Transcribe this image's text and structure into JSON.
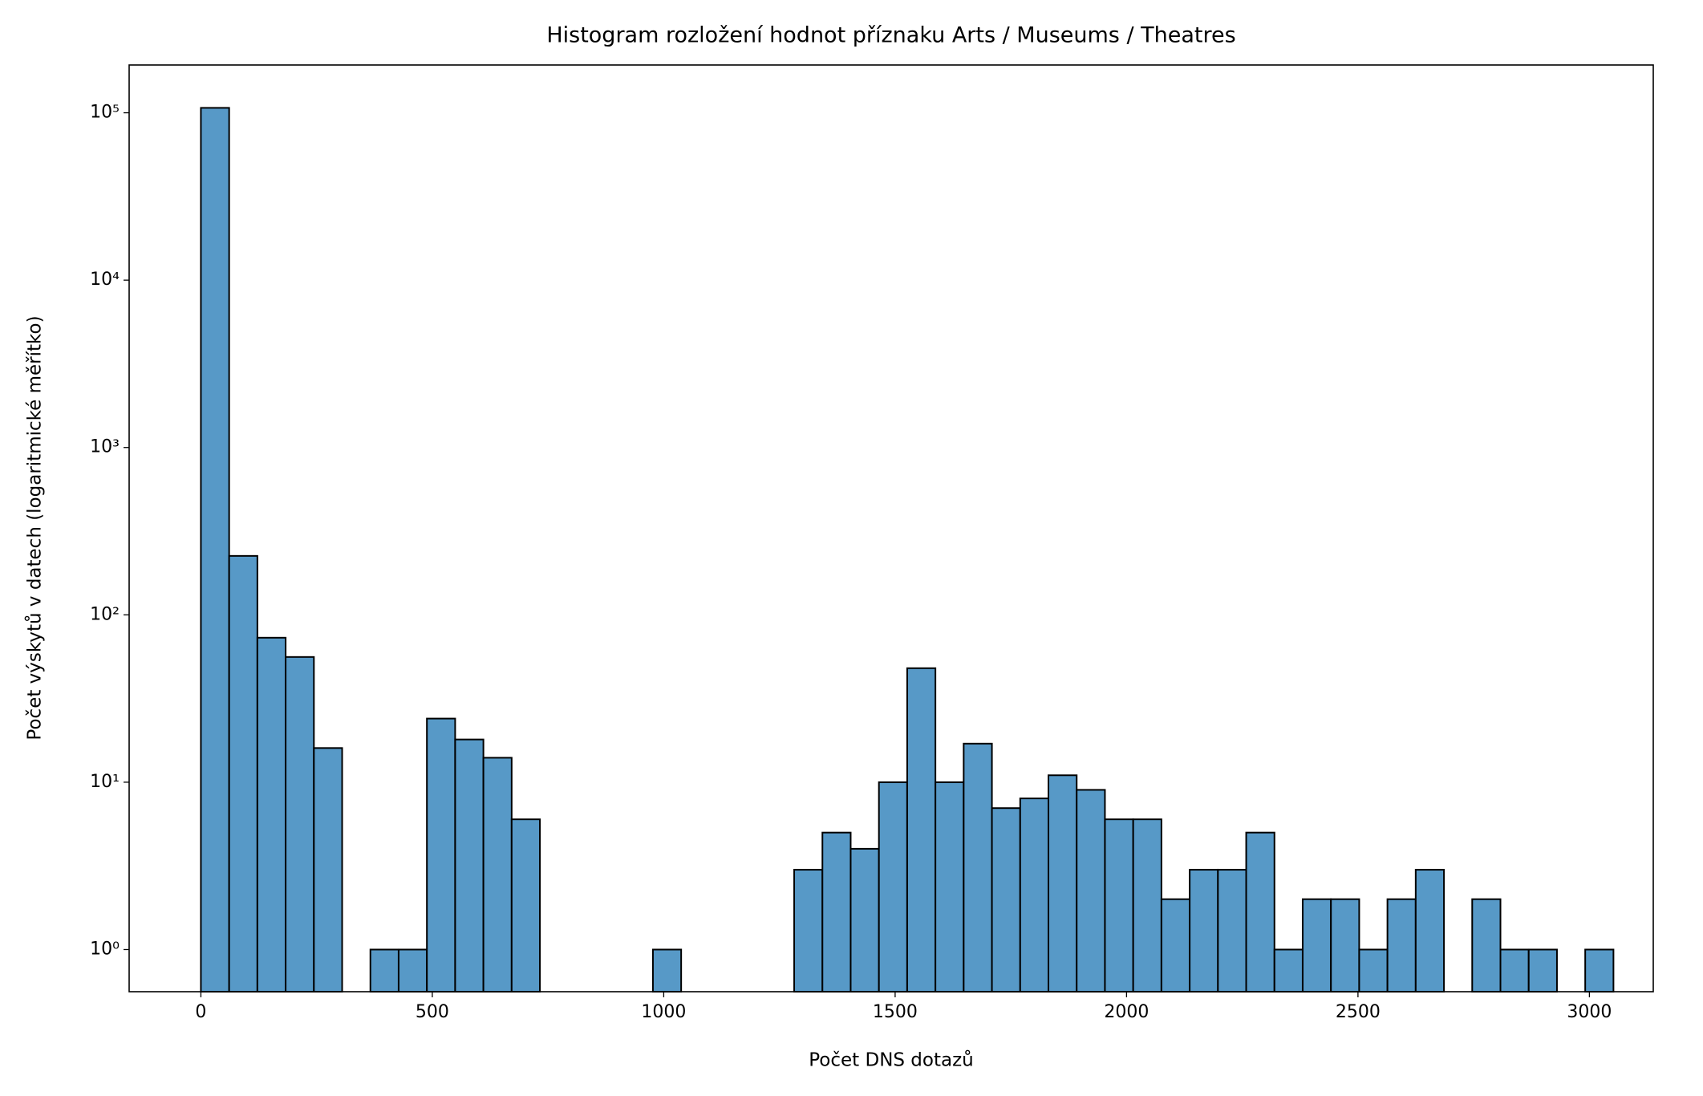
{
  "chart_data": {
    "type": "histogram",
    "title": "Histogram rozložení hodnot příznaku Arts / Museums / Theatres",
    "x_label": "Počet DNS dotazů",
    "y_label": "Počet výskytů v datech (logaritmické měřítko)",
    "bins": [
      0,
      61.04,
      122.08,
      183.12,
      244.16,
      305.2,
      366.24,
      427.28,
      488.32,
      549.36,
      610.4,
      671.44,
      732.48,
      793.52,
      854.56,
      915.6,
      976.64,
      1037.68,
      1098.72,
      1159.76,
      1220.8,
      1281.84,
      1342.88,
      1403.92,
      1464.96,
      1526,
      1587.04,
      1648.08,
      1709.12,
      1770.16,
      1831.2,
      1892.24,
      1953.28,
      2014.32,
      2075.36,
      2136.4,
      2197.44,
      2258.48,
      2319.52,
      2380.56,
      2441.6,
      2502.64,
      2563.68,
      2624.72,
      2685.76,
      2746.8,
      2807.84,
      2868.88,
      2929.92,
      2990.96,
      3052
    ],
    "values": [
      107000,
      225,
      73,
      56,
      16,
      0,
      1,
      1,
      24,
      18,
      14,
      6,
      0,
      0,
      0,
      0,
      1,
      0,
      0,
      0,
      0,
      3,
      5,
      4,
      10,
      48,
      10,
      17,
      7,
      8,
      11,
      9,
      6,
      6,
      2,
      3,
      3,
      5,
      1,
      2,
      2,
      1,
      2,
      3,
      0,
      2,
      1,
      1,
      0,
      1
    ],
    "color": "#5799c7",
    "edge_color": "#000000",
    "xlim": [
      -155,
      3138
    ],
    "ylim": [
      0.56,
      193000
    ],
    "y_scale": "log",
    "xticks": [
      0,
      500,
      1000,
      1500,
      2000,
      2500,
      3000
    ],
    "yticks": [
      {
        "value": 1,
        "label": "10⁰"
      },
      {
        "value": 10,
        "label": "10¹"
      },
      {
        "value": 100,
        "label": "10²"
      },
      {
        "value": 1000,
        "label": "10³"
      },
      {
        "value": 10000,
        "label": "10⁴"
      },
      {
        "value": 100000,
        "label": "10⁵"
      }
    ]
  }
}
